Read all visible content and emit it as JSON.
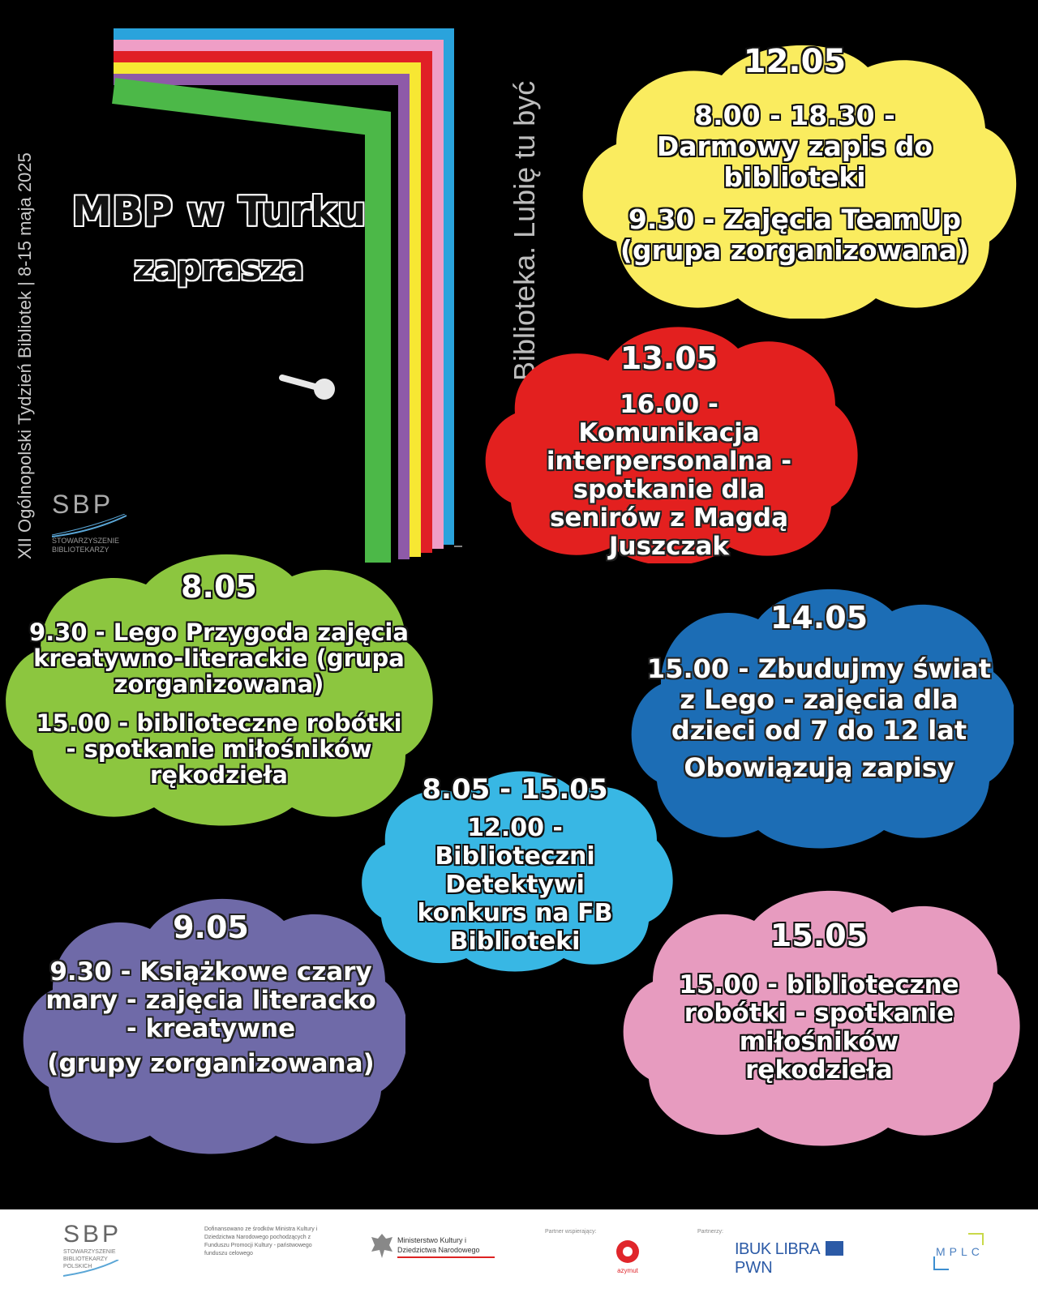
{
  "side_vertical_text": "XII Ogólnopolski Tydzień Bibliotek | 8-15 maja 2025",
  "slogan_vertical": "Biblioteka. Lubię tu być",
  "door": {
    "title_line1": "MBP w Turku",
    "title_line2": "zaprasza",
    "stripe_colors": [
      "#4cb848",
      "#8e5aa8",
      "#f7e733",
      "#e01f26",
      "#ef9ec6",
      "#2aa3dc"
    ]
  },
  "sbp_logo": {
    "letters": "SBP",
    "caption": "STOWARZYSZENIE BIBLIOTEKARZY POLSKICH"
  },
  "clouds": {
    "c1205": {
      "color": "#faec5f",
      "date": "12.05",
      "events": [
        "8.00 - 18.30 - Darmowy zapis do biblioteki",
        "9.30 - Zajęcia TeamUp (grupa zorganizowana)"
      ]
    },
    "c1305": {
      "color": "#e3201f",
      "date": "13.05",
      "events": [
        "16.00 - Komunikacja interpersonalna - spotkanie dla senirów z Magdą Juszczak"
      ]
    },
    "c0805": {
      "color": "#8cc63f",
      "date": "8.05",
      "events": [
        "9.30 - Lego Przygoda zajęcia kreatywno-literackie (grupa zorganizowana)",
        "15.00 - biblioteczne robótki - spotkanie miłośników rękodzieła"
      ]
    },
    "c1405": {
      "color": "#1c6db5",
      "date": "14.05",
      "events": [
        "15.00 - Zbudujmy świat z Lego - zajęcia dla dzieci od 7 do 12 lat",
        "Obowiązują zapisy"
      ]
    },
    "c0805_1505": {
      "color": "#38b7e4",
      "date": "8.05 - 15.05",
      "events": [
        "12.00 - Biblioteczni Detektywi konkurs na FB Biblioteki"
      ]
    },
    "c0905": {
      "color": "#6f6aa8",
      "date": "9.05",
      "events": [
        "9.30 - Książkowe czary mary - zajęcia literacko - kreatywne",
        "(grupy zorganizowana)"
      ]
    },
    "c1505": {
      "color": "#e79bbf",
      "date": "15.05",
      "events": [
        "15.00 - biblioteczne robótki - spotkanie miłośników rękodzieła"
      ]
    }
  },
  "footer": {
    "sbp": "SBP",
    "sbp_caption": "STOWARZYSZENIE BIBLIOTEKARZY POLSKICH",
    "funding_text": "Dofinansowano ze środków Ministra Kultury i Dziedzictwa Narodowego pochodzących z Funduszu Promocji Kultury - państwowego funduszu celowego",
    "ministry": "Ministerstwo Kultury i Dziedzictwa Narodowego",
    "partner_support_label": "Partner wspierający:",
    "azymut": "azymut",
    "partners_label": "Partnerzy:",
    "ibuk": "IBUK LIBRA",
    "pwn": "PWN",
    "mplc": "MPLC"
  }
}
